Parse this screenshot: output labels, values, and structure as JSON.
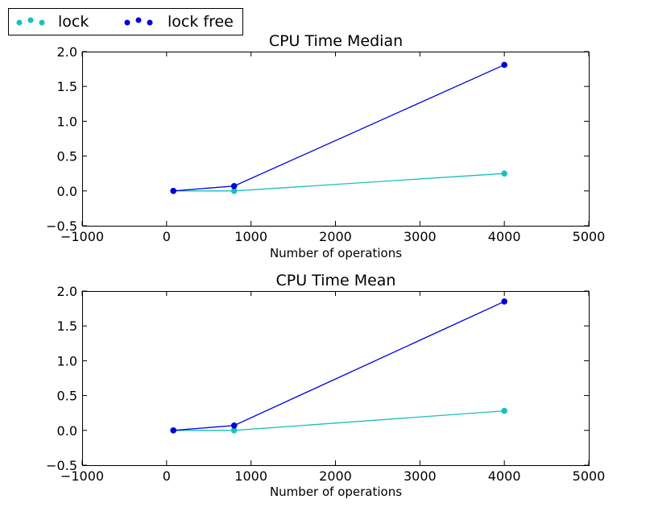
{
  "legend": {
    "placement": "top-left",
    "entries": [
      {
        "label": "lock",
        "color": "#1abfbf"
      },
      {
        "label": "lock free",
        "color": "#0000dd"
      }
    ]
  },
  "chart_data": [
    {
      "type": "line",
      "title": "CPU Time Median",
      "xlabel": "Number of operations",
      "ylabel": "",
      "xlim": [
        -1000,
        5000
      ],
      "ylim": [
        -0.5,
        2.0
      ],
      "xticks": [
        -1000,
        0,
        1000,
        2000,
        3000,
        4000,
        5000
      ],
      "xtick_labels": [
        "−1000",
        "0",
        "1000",
        "2000",
        "3000",
        "4000",
        "5000"
      ],
      "yticks": [
        -0.5,
        0.0,
        0.5,
        1.0,
        1.5,
        2.0
      ],
      "ytick_labels": [
        "−0.5",
        "0.0",
        "0.5",
        "1.0",
        "1.5",
        "2.0"
      ],
      "grid": false,
      "series": [
        {
          "name": "lock",
          "color": "#1abfbf",
          "x": [
            80,
            800,
            4000
          ],
          "y": [
            0.0,
            0.0,
            0.25
          ]
        },
        {
          "name": "lock free",
          "color": "#0000dd",
          "x": [
            80,
            800,
            4000
          ],
          "y": [
            0.0,
            0.07,
            1.81
          ]
        }
      ]
    },
    {
      "type": "line",
      "title": "CPU Time Mean",
      "xlabel": "Number of operations",
      "ylabel": "",
      "xlim": [
        -1000,
        5000
      ],
      "ylim": [
        -0.5,
        2.0
      ],
      "xticks": [
        -1000,
        0,
        1000,
        2000,
        3000,
        4000,
        5000
      ],
      "xtick_labels": [
        "−1000",
        "0",
        "1000",
        "2000",
        "3000",
        "4000",
        "5000"
      ],
      "yticks": [
        -0.5,
        0.0,
        0.5,
        1.0,
        1.5,
        2.0
      ],
      "ytick_labels": [
        "−0.5",
        "0.0",
        "0.5",
        "1.0",
        "1.5",
        "2.0"
      ],
      "grid": false,
      "series": [
        {
          "name": "lock",
          "color": "#1abfbf",
          "x": [
            80,
            800,
            4000
          ],
          "y": [
            0.0,
            0.0,
            0.28
          ]
        },
        {
          "name": "lock free",
          "color": "#0000dd",
          "x": [
            80,
            800,
            4000
          ],
          "y": [
            0.0,
            0.07,
            1.85
          ]
        }
      ]
    }
  ]
}
